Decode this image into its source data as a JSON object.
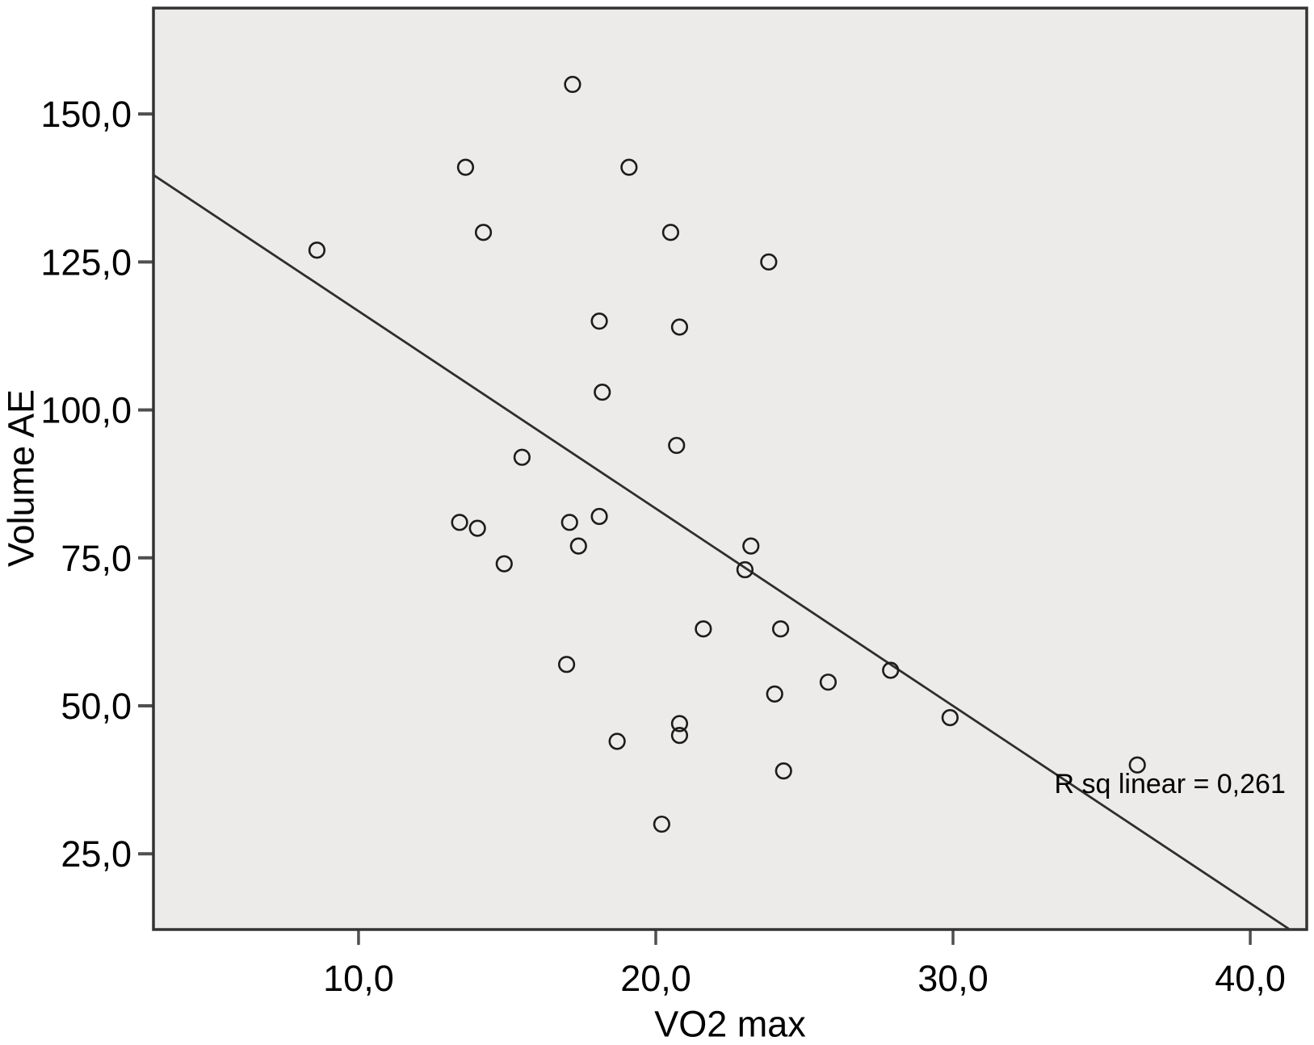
{
  "chart_data": {
    "type": "scatter",
    "title": "",
    "xlabel": "VO2 max",
    "ylabel": "Volume AE",
    "xlim": [
      3.1,
      41.9
    ],
    "ylim": [
      12.2,
      167.9
    ],
    "grid": false,
    "legend": false,
    "x_ticks": [
      {
        "value": 10,
        "label": "10,0"
      },
      {
        "value": 20,
        "label": "20,0"
      },
      {
        "value": 30,
        "label": "30,0"
      },
      {
        "value": 40,
        "label": "40,0"
      }
    ],
    "y_ticks": [
      {
        "value": 25,
        "label": "25,0"
      },
      {
        "value": 50,
        "label": "50,0"
      },
      {
        "value": 75,
        "label": "75,0"
      },
      {
        "value": 100,
        "label": "100,0"
      },
      {
        "value": 125,
        "label": "125,0"
      },
      {
        "value": 150,
        "label": "150,0"
      }
    ],
    "marker": {
      "shape": "open-circle"
    },
    "points": [
      [
        8.6,
        127
      ],
      [
        13.4,
        81
      ],
      [
        13.6,
        141
      ],
      [
        14.0,
        80
      ],
      [
        14.2,
        130
      ],
      [
        14.9,
        74
      ],
      [
        15.5,
        92
      ],
      [
        17.0,
        57
      ],
      [
        17.1,
        81
      ],
      [
        17.2,
        155
      ],
      [
        17.4,
        77
      ],
      [
        18.1,
        115
      ],
      [
        18.1,
        82
      ],
      [
        18.2,
        103
      ],
      [
        18.7,
        44
      ],
      [
        19.1,
        141
      ],
      [
        20.2,
        30
      ],
      [
        20.5,
        130
      ],
      [
        20.7,
        94
      ],
      [
        20.8,
        114
      ],
      [
        20.8,
        47
      ],
      [
        20.8,
        45
      ],
      [
        21.6,
        63
      ],
      [
        23.0,
        73
      ],
      [
        23.2,
        77
      ],
      [
        23.8,
        125
      ],
      [
        24.0,
        52
      ],
      [
        24.2,
        63
      ],
      [
        24.3,
        39
      ],
      [
        25.8,
        54
      ],
      [
        27.9,
        56
      ],
      [
        29.9,
        48
      ],
      [
        36.2,
        40
      ]
    ],
    "trendline": {
      "x1": 3.1,
      "y1": 139.7,
      "x2": 41.3,
      "y2": 12.3
    },
    "annotation": {
      "text": "R sq linear = 0,261",
      "x": 37.3,
      "y": 36.7
    },
    "colors": {
      "page_bg": "#FFFFFF",
      "plot_bg": "#ECEBE9",
      "marker": "#1C1C1C",
      "trend_line": "#2E2E2E",
      "plot_border": "#333333",
      "tick_mark": "#4F4F4F",
      "text": "#000000"
    }
  }
}
